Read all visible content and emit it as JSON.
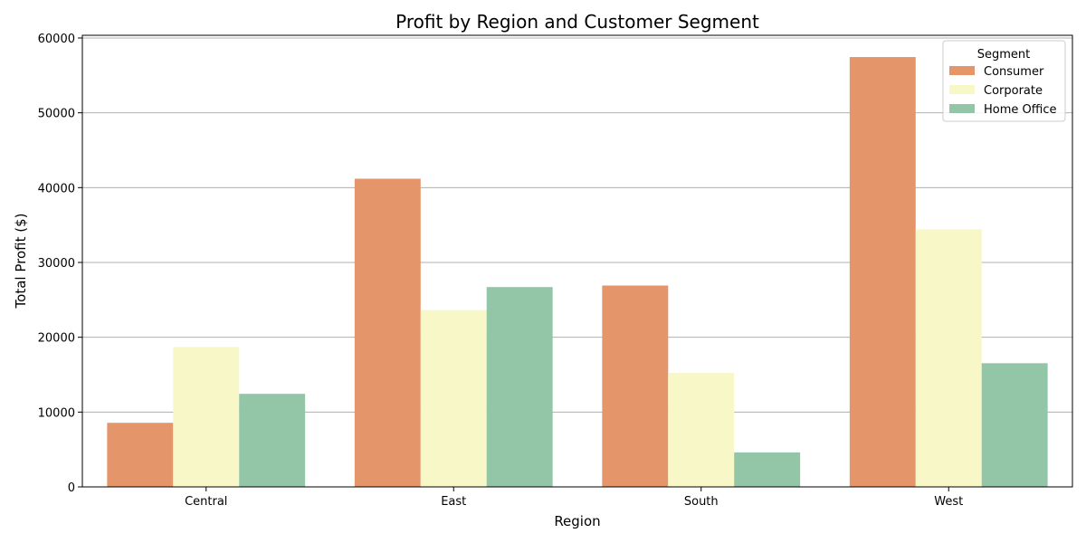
{
  "chart_data": {
    "type": "bar",
    "title": "Profit by Region and Customer Segment",
    "xlabel": "Region",
    "ylabel": "Total Profit ($)",
    "categories": [
      "Central",
      "East",
      "South",
      "West"
    ],
    "series": [
      {
        "name": "Consumer",
        "color": "#e5956a",
        "values": [
          8565,
          41191,
          26913,
          57451
        ]
      },
      {
        "name": "Corporate",
        "color": "#f7f7c8",
        "values": [
          18704,
          23622,
          15215,
          34416
        ]
      },
      {
        "name": "Home Office",
        "color": "#92c6a6",
        "values": [
          12438,
          26710,
          4607,
          16530
        ]
      }
    ],
    "ylim": [
      0,
      60360
    ],
    "yticks": [
      0,
      10000,
      20000,
      30000,
      40000,
      50000,
      60000
    ],
    "grid": "horizontal",
    "legend": {
      "title": "Segment",
      "position": "top-right"
    }
  }
}
